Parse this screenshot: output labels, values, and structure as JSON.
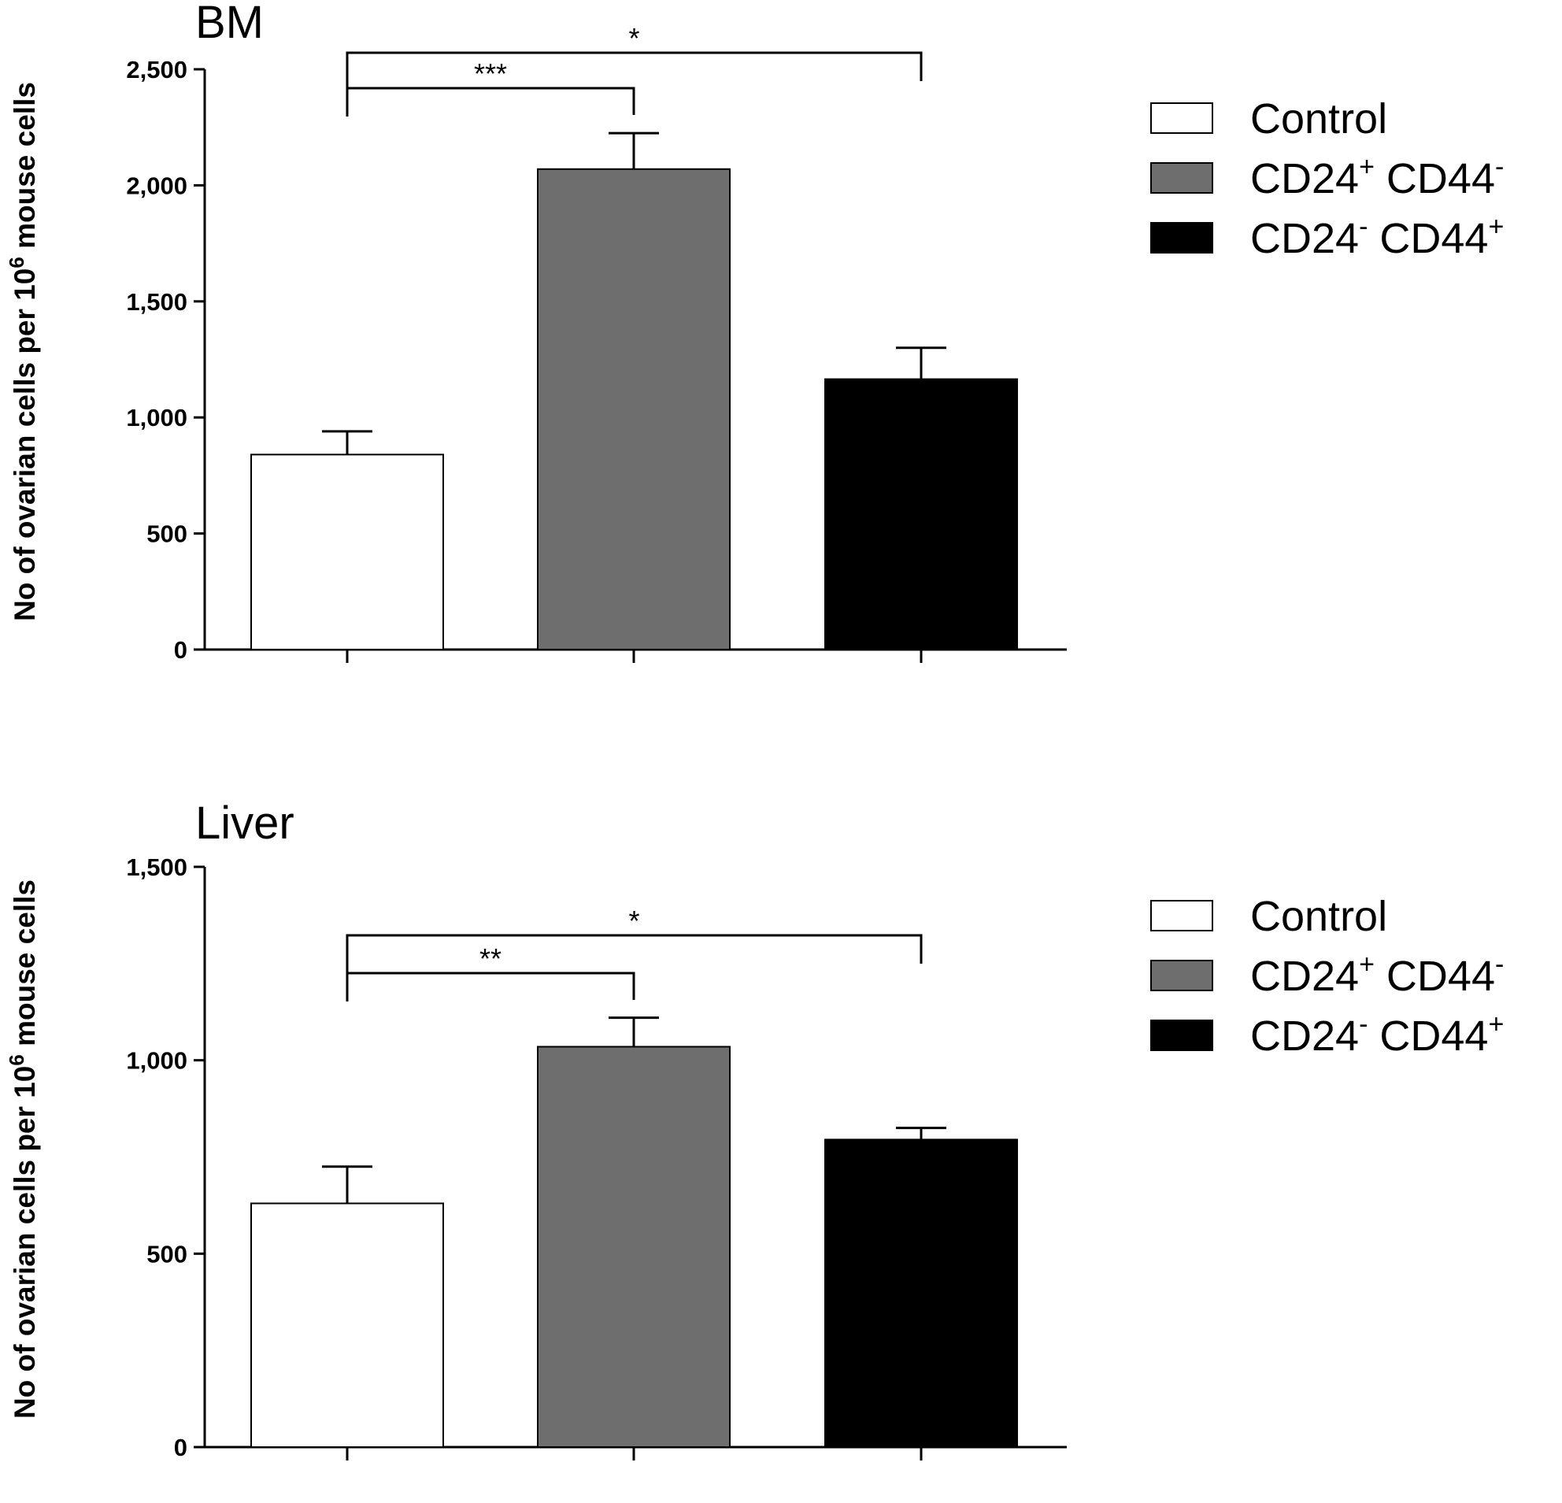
{
  "chart_data": [
    {
      "type": "bar",
      "title": "BM",
      "ylabel_prefix": "No of ovarian cells per 10",
      "ylabel_exp": "6",
      "ylabel_suffix": " mouse cells",
      "ylim": [
        0,
        2500
      ],
      "yticks": [
        0,
        500,
        1000,
        1500,
        2000,
        2500
      ],
      "ytick_labels": [
        "0",
        "500",
        "1,000",
        "1,500",
        "2,000",
        "2,500"
      ],
      "categories": [
        "Control",
        "CD24+ CD44-",
        "CD24- CD44+"
      ],
      "values": [
        840,
        2070,
        1165
      ],
      "errors": [
        100,
        155,
        135
      ],
      "colors": [
        "#ffffff",
        "#6e6e6e",
        "#000000"
      ],
      "significance": [
        {
          "from": 0,
          "to": 1,
          "label": "***"
        },
        {
          "from": 0,
          "to": 2,
          "label": "*"
        }
      ]
    },
    {
      "type": "bar",
      "title": "Liver",
      "ylabel_prefix": "No of ovarian cells per 10",
      "ylabel_exp": "6",
      "ylabel_suffix": " mouse cells",
      "ylim": [
        0,
        1500
      ],
      "yticks": [
        0,
        500,
        1000,
        1500
      ],
      "ytick_labels": [
        "0",
        "500",
        "1,000",
        "1,500"
      ],
      "categories": [
        "Control",
        "CD24+ CD44-",
        "CD24- CD44+"
      ],
      "values": [
        630,
        1035,
        795
      ],
      "errors": [
        95,
        75,
        30
      ],
      "colors": [
        "#ffffff",
        "#6e6e6e",
        "#000000"
      ],
      "significance": [
        {
          "from": 0,
          "to": 1,
          "label": "**"
        },
        {
          "from": 0,
          "to": 2,
          "label": "*"
        }
      ]
    }
  ],
  "legend": [
    {
      "base": "Control",
      "sup1": "",
      "mid": "",
      "sup2": "",
      "color": "#ffffff"
    },
    {
      "base": "CD24",
      "sup1": "+",
      "mid": " CD44",
      "sup2": "-",
      "color": "#6e6e6e"
    },
    {
      "base": "CD24",
      "sup1": "-",
      "mid": "  CD44",
      "sup2": "+",
      "color": "#000000"
    }
  ]
}
